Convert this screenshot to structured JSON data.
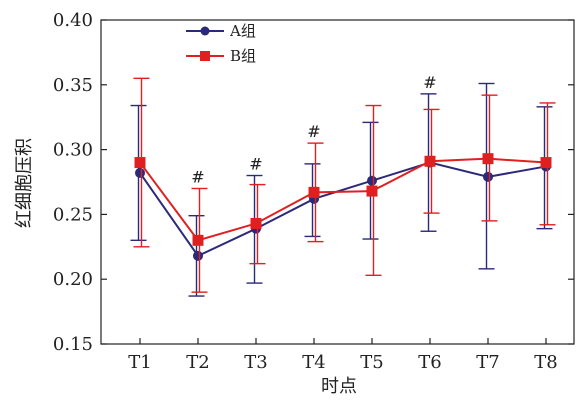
{
  "chart_data": {
    "type": "line",
    "title": "",
    "xlabel": "时点",
    "ylabel": "红细胞压积",
    "categories": [
      "T1",
      "T2",
      "T3",
      "T4",
      "T5",
      "T6",
      "T7",
      "T8"
    ],
    "ylim": [
      0.15,
      0.4
    ],
    "yticks": [
      0.15,
      0.2,
      0.25,
      0.3,
      0.35,
      0.4
    ],
    "ytick_labels": [
      "0.15",
      "0.20",
      "0.25",
      "0.30",
      "0.35",
      "0.40"
    ],
    "grid": false,
    "legend_position": "top-left",
    "series": [
      {
        "name": "A组",
        "color": "#2b2a78",
        "marker": "circle",
        "values": [
          0.282,
          0.218,
          0.239,
          0.262,
          0.276,
          0.29,
          0.279,
          0.287
        ],
        "error_upper": [
          0.334,
          0.249,
          0.28,
          0.289,
          0.321,
          0.343,
          0.351,
          0.333
        ],
        "error_lower": [
          0.23,
          0.187,
          0.197,
          0.233,
          0.231,
          0.237,
          0.208,
          0.239
        ]
      },
      {
        "name": "B组",
        "color": "#e02020",
        "marker": "square",
        "values": [
          0.29,
          0.23,
          0.243,
          0.267,
          0.268,
          0.291,
          0.293,
          0.29
        ],
        "error_upper": [
          0.355,
          0.27,
          0.273,
          0.305,
          0.334,
          0.331,
          0.342,
          0.336
        ],
        "error_lower": [
          0.225,
          0.19,
          0.212,
          0.229,
          0.203,
          0.251,
          0.245,
          0.242
        ]
      }
    ],
    "annotations": [
      {
        "category": "T2",
        "text": "#"
      },
      {
        "category": "T3",
        "text": "#"
      },
      {
        "category": "T4",
        "text": "#"
      },
      {
        "category": "T6",
        "text": "#"
      }
    ]
  }
}
